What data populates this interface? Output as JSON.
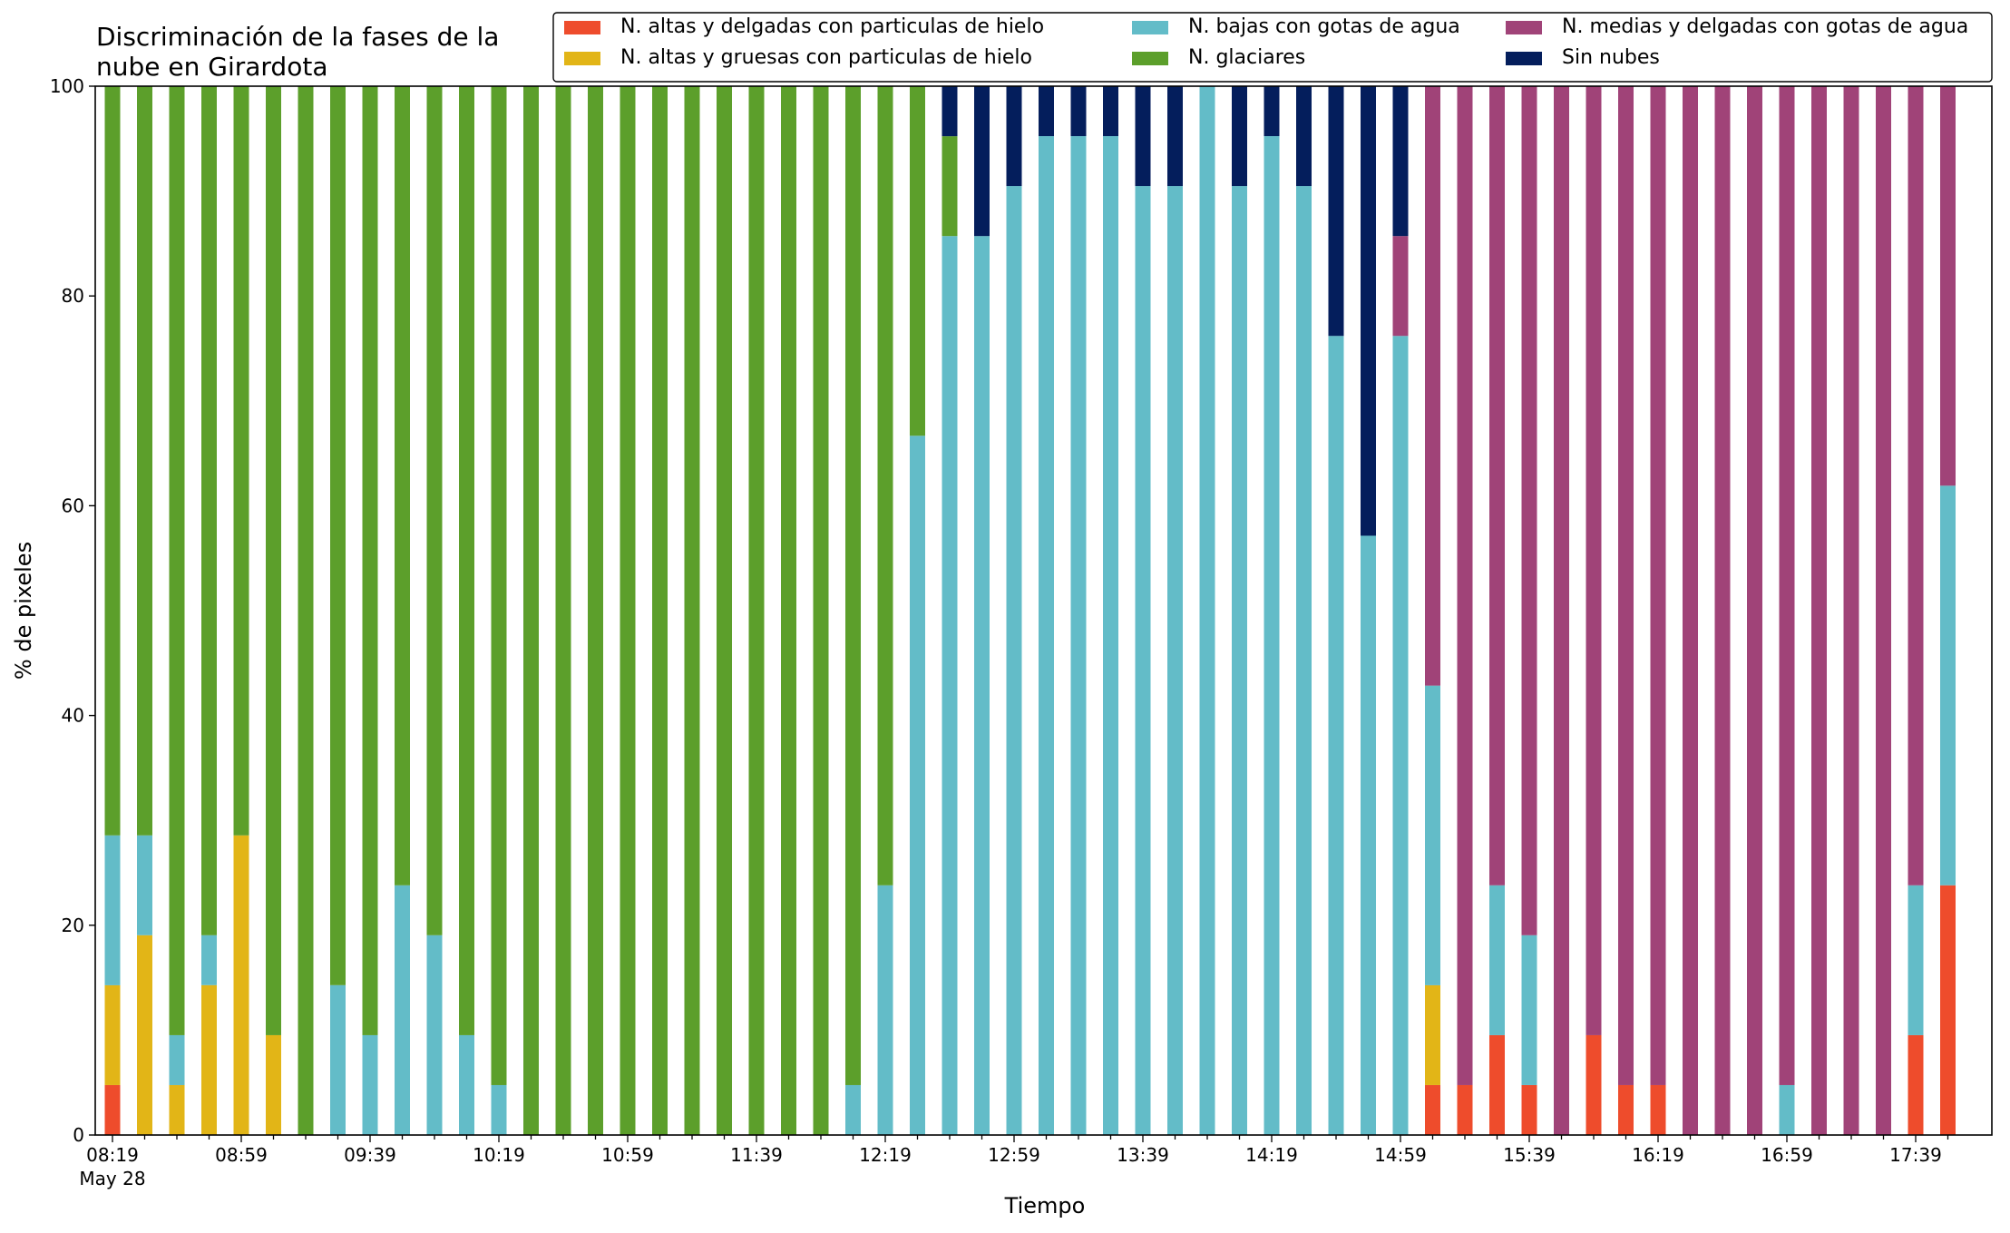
{
  "chart_data": {
    "type": "bar",
    "stacked": true,
    "title": [
      "Discriminación de la fases de la",
      "nube en Girardota"
    ],
    "xlabel": "Tiempo",
    "ylabel": "% de pixeles",
    "ylim": [
      0,
      100
    ],
    "yticks": [
      "0",
      "20",
      "40",
      "60",
      "80",
      "100"
    ],
    "x_tick_labels": [
      "08:19",
      "08:59",
      "09:39",
      "10:19",
      "10:59",
      "11:39",
      "12:19",
      "12:59",
      "13:39",
      "14:19",
      "14:59",
      "15:39",
      "16:19",
      "16:59",
      "17:39"
    ],
    "x_date_label": "May 28",
    "legend_position": "top-right",
    "categories": [
      "08:19",
      "08:29",
      "08:39",
      "08:49",
      "08:59",
      "09:09",
      "09:19",
      "09:29",
      "09:39",
      "09:49",
      "09:59",
      "10:09",
      "10:19",
      "10:29",
      "10:39",
      "10:49",
      "10:59",
      "11:09",
      "11:19",
      "11:29",
      "11:39",
      "11:49",
      "11:59",
      "12:09",
      "12:19",
      "12:29",
      "12:39",
      "12:49",
      "12:59",
      "13:09",
      "13:19",
      "13:29",
      "13:39",
      "13:49",
      "13:59",
      "14:09",
      "14:19",
      "14:29",
      "14:39",
      "14:49",
      "14:59",
      "15:09",
      "15:19",
      "15:29",
      "15:39",
      "15:49",
      "15:59",
      "16:09",
      "16:19",
      "16:29",
      "16:39",
      "16:49",
      "16:59",
      "17:09",
      "17:19",
      "17:29",
      "17:39",
      "17:49"
    ],
    "series": [
      {
        "name": "N. altas y delgadas con particulas de hielo",
        "color": "#ee4c2c",
        "values": [
          4.76,
          0,
          0,
          0,
          0,
          0,
          0,
          0,
          0,
          0,
          0,
          0,
          0,
          0,
          0,
          0,
          0,
          0,
          0,
          0,
          0,
          0,
          0,
          0,
          0,
          0,
          0,
          0,
          0,
          0,
          0,
          0,
          0,
          0,
          0,
          0,
          0,
          0,
          0,
          0,
          0,
          4.76,
          4.76,
          9.52,
          4.76,
          0,
          9.52,
          4.76,
          4.76,
          0,
          0,
          0,
          0,
          0,
          0,
          0,
          9.52,
          23.81
        ]
      },
      {
        "name": "N. altas y gruesas con particulas de hielo",
        "color": "#e2b517",
        "values": [
          9.52,
          19.05,
          4.76,
          14.29,
          28.57,
          9.52,
          0,
          0,
          0,
          0,
          0,
          0,
          0,
          0,
          0,
          0,
          0,
          0,
          0,
          0,
          0,
          0,
          0,
          0,
          0,
          0,
          0,
          0,
          0,
          0,
          0,
          0,
          0,
          0,
          0,
          0,
          0,
          0,
          0,
          0,
          0,
          9.52,
          0,
          0,
          0,
          0,
          0,
          0,
          0,
          0,
          0,
          0,
          0,
          0,
          0,
          0,
          0,
          0
        ]
      },
      {
        "name": "N. bajas con gotas de agua",
        "color": "#63bcc8",
        "values": [
          14.29,
          9.52,
          4.76,
          4.76,
          0,
          0,
          0,
          14.29,
          9.52,
          23.81,
          19.05,
          9.52,
          4.76,
          0,
          0,
          0,
          0,
          0,
          0,
          0,
          0,
          0,
          0,
          4.76,
          23.81,
          66.67,
          85.71,
          85.71,
          90.48,
          95.24,
          95.24,
          95.24,
          90.48,
          90.48,
          100,
          90.48,
          95.24,
          90.48,
          76.19,
          57.14,
          76.19,
          28.57,
          0,
          14.29,
          14.29,
          0,
          0,
          0,
          0,
          0,
          0,
          0,
          4.76,
          0,
          0,
          0,
          14.29,
          38.1
        ]
      },
      {
        "name": "N. glaciares",
        "color": "#5c9f2b",
        "values": [
          71.43,
          71.43,
          90.48,
          80.95,
          71.43,
          90.48,
          100,
          85.71,
          90.48,
          76.19,
          80.95,
          90.48,
          95.24,
          100,
          100,
          100,
          100,
          100,
          100,
          100,
          100,
          100,
          100,
          95.24,
          76.19,
          33.33,
          9.52,
          0,
          0,
          0,
          0,
          0,
          0,
          0,
          0,
          0,
          0,
          0,
          0,
          0,
          0,
          0,
          0,
          0,
          0,
          0,
          0,
          0,
          0,
          0,
          0,
          0,
          0,
          0,
          0,
          0,
          0,
          0
        ]
      },
      {
        "name": "N. medias y delgadas con gotas de agua",
        "color": "#a04378",
        "values": [
          0,
          0,
          0,
          0,
          0,
          0,
          0,
          0,
          0,
          0,
          0,
          0,
          0,
          0,
          0,
          0,
          0,
          0,
          0,
          0,
          0,
          0,
          0,
          0,
          0,
          0,
          0,
          0,
          0,
          0,
          0,
          0,
          0,
          0,
          0,
          0,
          0,
          0,
          0,
          0,
          9.52,
          57.14,
          95.24,
          76.19,
          80.95,
          100,
          90.48,
          95.24,
          95.24,
          100,
          100,
          100,
          95.24,
          100,
          100,
          100,
          76.19,
          38.09
        ]
      },
      {
        "name": "Sin nubes",
        "color": "#041e5c",
        "values": [
          0,
          0,
          0,
          0,
          0,
          0,
          0,
          0,
          0,
          0,
          0,
          0,
          0,
          0,
          0,
          0,
          0,
          0,
          0,
          0,
          0,
          0,
          0,
          0,
          0,
          0,
          4.76,
          14.29,
          9.52,
          4.76,
          4.76,
          4.76,
          9.52,
          9.52,
          0,
          9.52,
          4.76,
          9.52,
          23.81,
          42.86,
          14.29,
          0,
          0,
          0,
          0,
          0,
          0,
          0,
          0,
          0,
          0,
          0,
          0,
          0,
          0,
          0,
          0,
          0
        ]
      }
    ],
    "legend_order": [
      0,
      1,
      2,
      3,
      4,
      5
    ],
    "legend_columns": 3
  }
}
